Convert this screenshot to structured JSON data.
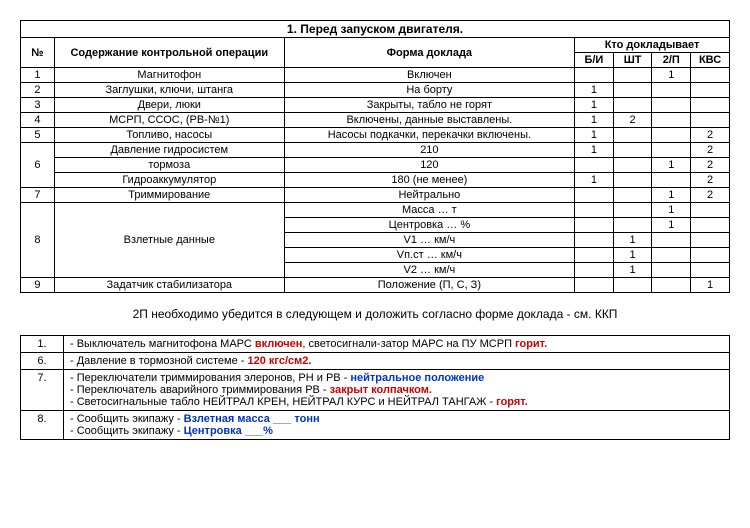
{
  "title": "1. Перед запуском двигателя.",
  "headers": {
    "num": "№",
    "operation": "Содержание контрольной операции",
    "form": "Форма доклада",
    "who": "Кто докладывает",
    "who_cols": [
      "Б/И",
      "ШТ",
      "2/П",
      "КВС"
    ]
  },
  "rows": [
    {
      "num": "1",
      "op": "Магнитофон",
      "form": "Включен",
      "who": [
        "",
        "",
        "1",
        ""
      ]
    },
    {
      "num": "2",
      "op": "Заглушки, ключи, штанга",
      "form": "На борту",
      "who": [
        "1",
        "",
        "",
        ""
      ]
    },
    {
      "num": "3",
      "op": "Двери, люки",
      "form": "Закрыты, табло не горят",
      "who": [
        "1",
        "",
        "",
        ""
      ]
    },
    {
      "num": "4",
      "op": "МСРП, ССОС, (РВ-№1)",
      "form": "Включены, данные выставлены.",
      "who": [
        "1",
        "2",
        "",
        ""
      ]
    },
    {
      "num": "5",
      "op": "Топливо, насосы",
      "form": "Насосы подкачки, перекачки включены.",
      "who": [
        "1",
        "",
        "",
        "2"
      ]
    },
    {
      "num": "6",
      "op": "Давление гидросистем",
      "form": "210",
      "who": [
        "1",
        "",
        "",
        "2"
      ],
      "rowspan_num": 3,
      "sub": [
        {
          "op": "тормоза",
          "form": "120",
          "who": [
            "",
            "",
            "1",
            "2"
          ]
        },
        {
          "op": "Гидроаккумулятор",
          "form": "180 (не менее)",
          "who": [
            "1",
            "",
            "",
            "2"
          ]
        }
      ]
    },
    {
      "num": "7",
      "op": "Триммирование",
      "form": "Нейтрально",
      "who": [
        "",
        "",
        "1",
        "2"
      ]
    },
    {
      "num": "8",
      "op": "Взлетные данные",
      "form": "Масса … т",
      "who": [
        "",
        "",
        "1",
        ""
      ],
      "rowspan_op": 5,
      "sub": [
        {
          "form": "Центровка … %",
          "who": [
            "",
            "",
            "1",
            ""
          ]
        },
        {
          "form": "V1 … км/ч",
          "who": [
            "",
            "1",
            "",
            ""
          ]
        },
        {
          "form": "Vп.ст … км/ч",
          "who": [
            "",
            "1",
            "",
            ""
          ]
        },
        {
          "form": "V2 … км/ч",
          "who": [
            "",
            "1",
            "",
            ""
          ]
        }
      ]
    },
    {
      "num": "9",
      "op": "Задатчик стабилизатора",
      "form": "Положение (П, С, З)",
      "who": [
        "",
        "",
        "",
        "1"
      ]
    }
  ],
  "note_text": "2П необходимо убедится в следующем и доложить согласно форме доклада - см. ККП",
  "notes": [
    {
      "num": "1.",
      "parts": [
        {
          "t": "- Выключатель магнитофона МАРС "
        },
        {
          "t": "включен",
          "c": "red"
        },
        {
          "t": ", светосигнали-затор МАРС на ПУ МСРП "
        },
        {
          "t": "горит.",
          "c": "red"
        }
      ]
    },
    {
      "num": "6.",
      "parts": [
        {
          "t": "- Давление в тормозной системе - "
        },
        {
          "t": "120 кгс/см2.",
          "c": "red"
        }
      ]
    },
    {
      "num": "7.",
      "parts": [
        {
          "t": "- Переключатели триммирования элеронов, РН и РВ - "
        },
        {
          "t": "нейтральное положение",
          "c": "blue"
        },
        {
          "br": true
        },
        {
          "t": "- Переключатель аварийного триммирования РВ  - "
        },
        {
          "t": "закрыт колпачком.",
          "c": "red"
        },
        {
          "br": true
        },
        {
          "t": "- Светосигнальные табло НЕЙТРАЛ КРЕН, НЕЙТРАЛ КУРС и НЕЙТРАЛ ТАНГАЖ - "
        },
        {
          "t": "горят.",
          "c": "red"
        }
      ]
    },
    {
      "num": "8.",
      "parts": [
        {
          "t": "- Сообщить экипажу - "
        },
        {
          "t": "Взлетная масса ___ тонн",
          "c": "blue"
        },
        {
          "br": true
        },
        {
          "t": "- Сообщить экипажу - "
        },
        {
          "t": "Центровка ___%",
          "c": "blue"
        }
      ]
    }
  ]
}
